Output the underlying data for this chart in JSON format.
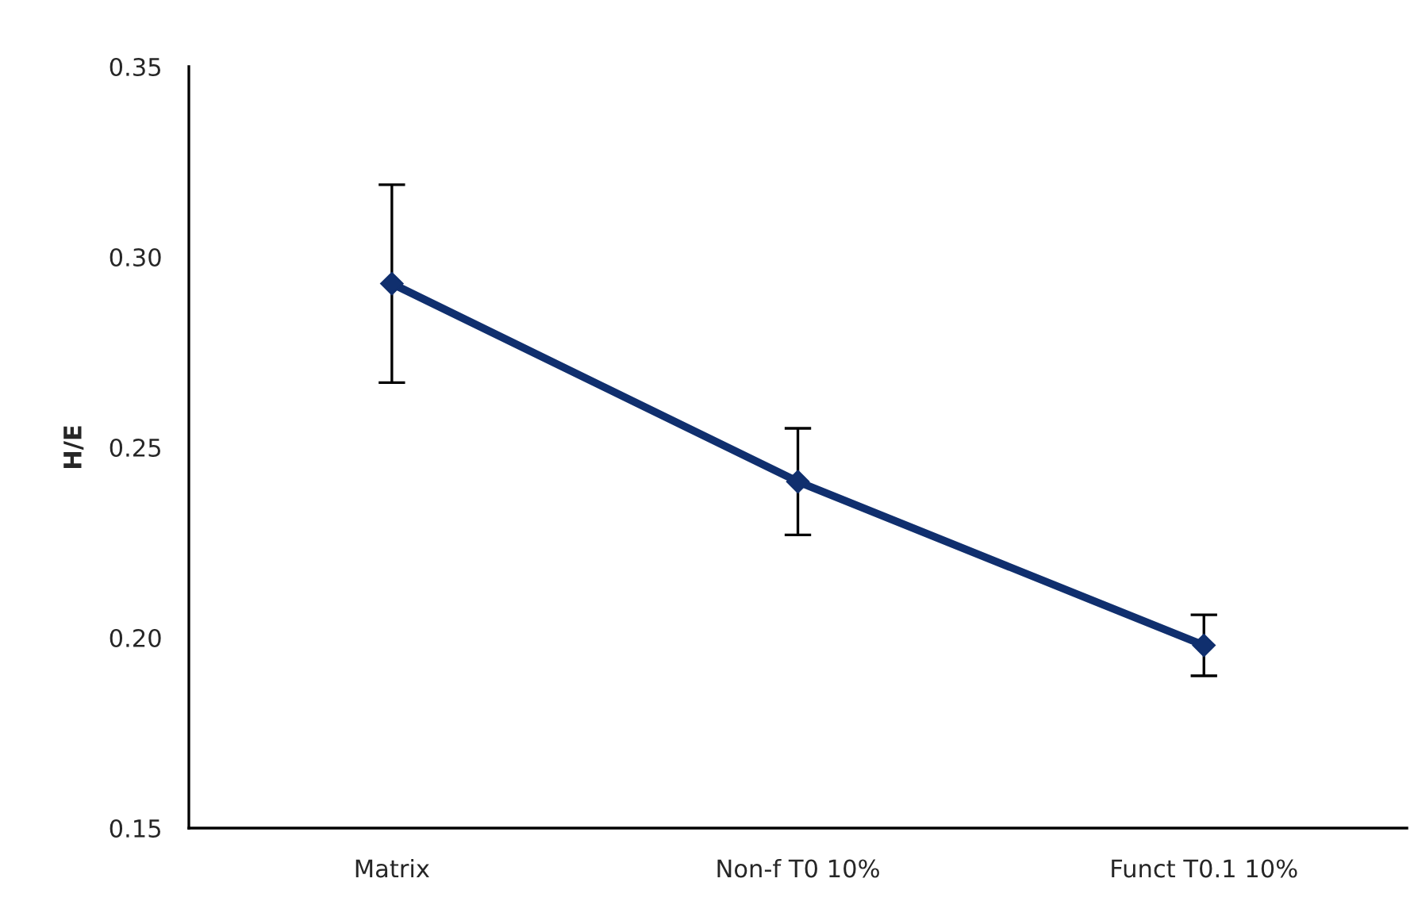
{
  "chart_data": {
    "type": "line",
    "ylabel": "H/E",
    "categories": [
      "Matrix",
      "Non-f T0 10%",
      "Funct T0.1 10%"
    ],
    "series": [
      {
        "color": "#102f6e",
        "values": [
          0.293,
          0.241,
          0.198
        ],
        "errors": [
          0.026,
          0.014,
          0.008
        ]
      }
    ],
    "ylim": [
      0.15,
      0.35
    ],
    "yticks": [
      0.15,
      {
        "value": 0.2,
        "label": "0.20"
      },
      0.25,
      {
        "value": 0.3,
        "label": "0.30"
      },
      0.35
    ],
    "marker": "diamond",
    "line_style": "solid",
    "grid": false,
    "legend": false
  }
}
